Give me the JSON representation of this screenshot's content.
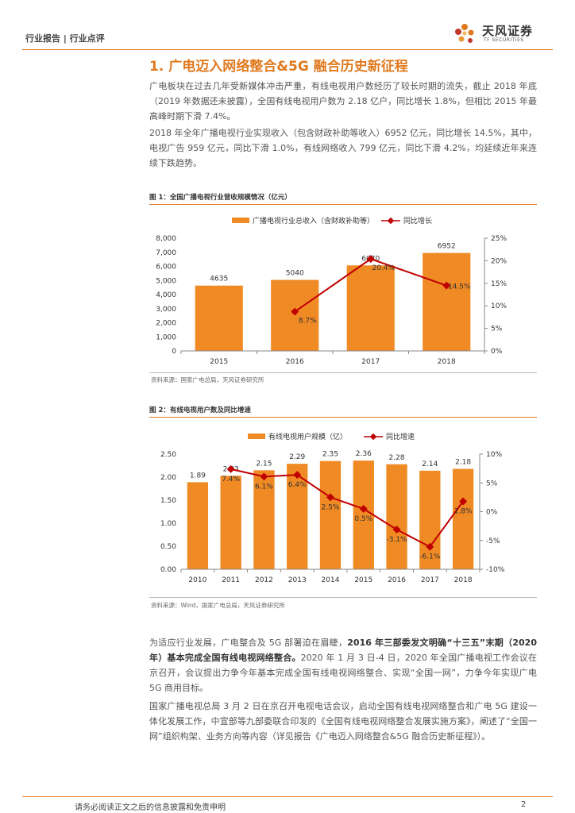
{
  "header": {
    "breadcrumb": "行业报告 | 行业点评",
    "logo_cn": "天风证券",
    "logo_en": "TF SECURITIES"
  },
  "section_title": "1. 广电迈入网络整合&5G 融合历史新征程",
  "paragraphs": {
    "p1": "广电板块在过去几年受新媒体冲击严重，有线电视用户数经历了较长时期的流失，截止 2018 年底（2019 年数据还未披露），全国有线电视用户数为 2.18 亿户，同比增长 1.8%，但相比 2015 年最高峰时期下滑 7.4%。",
    "p2": "2018 年全年广播电视行业实现收入（包含财政补助等收入）6952 亿元，同比增长 14.5%，其中，电视广告 959 亿元，同比下滑 1.0%，有线网络收入 799 亿元，同比下滑 4.2%，均延续近年来连续下跌趋势。",
    "p3_pre": "为适应行业发展，广电整合及 5G 部署迫在眉睫，",
    "p3_bold": "2016 年三部委发文明确“十三五”末期（2020 年）基本完成全国有线电视网络整合。",
    "p3_post": "2020 年 1 月 3 日-4 日，2020 年全国广播电视工作会议在京召开，会议提出力争今年基本完成全国有线电视网络整合、实现“全国一网”，力争今年实现广电 5G 商用目标。",
    "p4": "国家广播电视总局 3 月 2 日在京召开电视电话会议，启动全国有线电视网络整合和广电 5G 建设一体化发展工作，中宣部等九部委联合印发的《全国有线电视网络整合发展实施方案》，阐述了“全国一网”组织构架、业务方向等内容（详见报告《广电迈入网络整合&5G 融合历史新征程》）。"
  },
  "figure1": {
    "title": "图 1：全国广播电视行业营收规模情况（亿元）",
    "source": "资料来源：国家广电总局，天风证券研究所"
  },
  "figure2": {
    "title": "图 2：有线电视用户数及同比增速",
    "source": "资料来源：Wind，国家广电总局，天风证券研究所"
  },
  "footer": {
    "disclaimer": "请务必阅读正文之后的信息披露和免责申明",
    "page": "2"
  },
  "colors": {
    "accent": "#e07a1f",
    "bar": "#f08a24",
    "line": "#c00000"
  },
  "chart_data": [
    {
      "type": "bar",
      "title": "全国广播电视行业营收规模情况（亿元）",
      "categories": [
        "2015",
        "2016",
        "2017",
        "2018"
      ],
      "series": [
        {
          "name": "广播电视行业总收入（含财政补助等）",
          "kind": "bar",
          "axis": "left",
          "values": [
            4635,
            5040,
            6070,
            6952
          ],
          "labels": [
            "4635",
            "5040",
            "6070",
            "6952"
          ]
        },
        {
          "name": "同比增长",
          "kind": "line",
          "axis": "right",
          "values": [
            null,
            8.7,
            20.4,
            14.5
          ],
          "labels": [
            "",
            "8.7%",
            "20.4%",
            "14.5%"
          ]
        }
      ],
      "ylim": [
        0,
        8000
      ],
      "yticks": [
        0,
        1000,
        2000,
        3000,
        4000,
        5000,
        6000,
        7000,
        8000
      ],
      "ytick_labels": [
        "0",
        "1,000",
        "2,000",
        "3,000",
        "4,000",
        "5,000",
        "6,000",
        "7,000",
        "8,000"
      ],
      "y2lim": [
        0,
        25
      ],
      "y2ticks": [
        0,
        5,
        10,
        15,
        20,
        25
      ],
      "y2tick_labels": [
        "0%",
        "5%",
        "10%",
        "15%",
        "20%",
        "25%"
      ],
      "legend_position": "top"
    },
    {
      "type": "bar",
      "title": "有线电视用户数及同比增速",
      "categories": [
        "2010",
        "2011",
        "2012",
        "2013",
        "2014",
        "2015",
        "2016",
        "2017",
        "2018"
      ],
      "series": [
        {
          "name": "有线电视用户规模（亿）",
          "kind": "bar",
          "axis": "left",
          "values": [
            1.89,
            2.03,
            2.15,
            2.29,
            2.35,
            2.36,
            2.28,
            2.14,
            2.18
          ],
          "labels": [
            "1.89",
            "2.03",
            "2.15",
            "2.29",
            "2.35",
            "2.36",
            "2.28",
            "2.14",
            "2.18"
          ]
        },
        {
          "name": "同比增速",
          "kind": "line",
          "axis": "right",
          "values": [
            null,
            7.4,
            6.1,
            6.4,
            2.5,
            0.5,
            -3.1,
            -6.1,
            1.8
          ],
          "labels": [
            "",
            "7.4%",
            "6.1%",
            "6.4%",
            "2.5%",
            "0.5%",
            "-3.1%",
            "-6.1%",
            "1.8%"
          ]
        }
      ],
      "ylim": [
        0,
        2.5
      ],
      "yticks": [
        0,
        0.5,
        1.0,
        1.5,
        2.0,
        2.5
      ],
      "ytick_labels": [
        "0.00",
        "0.50",
        "1.00",
        "1.50",
        "2.00",
        "2.50"
      ],
      "y2lim": [
        -10,
        10
      ],
      "y2ticks": [
        -10,
        -5,
        0,
        5,
        10
      ],
      "y2tick_labels": [
        "-10%",
        "-5%",
        "0%",
        "5%",
        "10%"
      ],
      "legend_position": "top"
    }
  ]
}
